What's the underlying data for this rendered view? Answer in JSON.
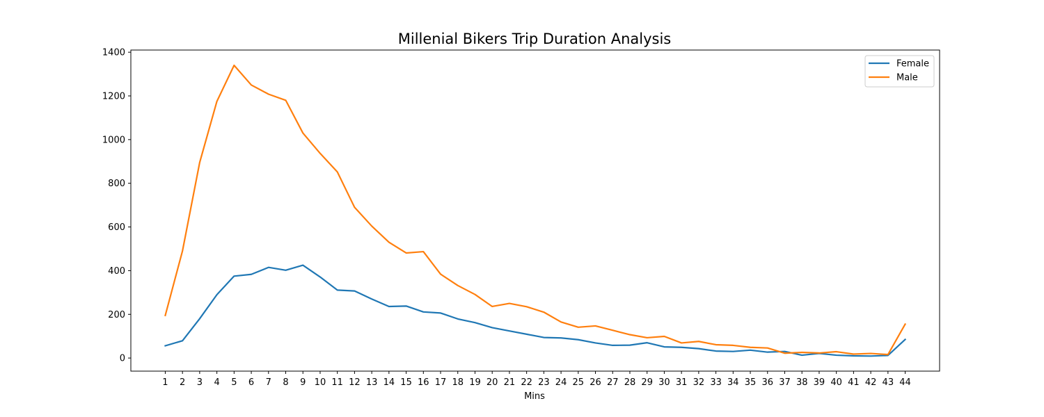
{
  "chart_data": {
    "type": "line",
    "title": "Millenial Bikers Trip Duration Analysis",
    "xlabel": "Mins",
    "ylabel": "",
    "x": [
      1,
      2,
      3,
      4,
      5,
      6,
      7,
      8,
      9,
      10,
      11,
      12,
      13,
      14,
      15,
      16,
      17,
      18,
      19,
      20,
      21,
      22,
      23,
      24,
      25,
      26,
      27,
      28,
      29,
      30,
      31,
      32,
      33,
      34,
      35,
      36,
      37,
      38,
      39,
      40,
      41,
      42,
      43,
      44
    ],
    "xlim": [
      -1,
      46
    ],
    "ylim": [
      -60,
      1410
    ],
    "yticks": [
      0,
      200,
      400,
      600,
      800,
      1000,
      1200,
      1400
    ],
    "grid": false,
    "legend": {
      "position": "top-right"
    },
    "series": [
      {
        "name": "Female",
        "color": "#1f77b4",
        "values": [
          56,
          79,
          180,
          290,
          375,
          383,
          415,
          402,
          425,
          371,
          311,
          307,
          270,
          236,
          238,
          211,
          206,
          179,
          162,
          139,
          124,
          109,
          94,
          92,
          84,
          69,
          58,
          59,
          70,
          51,
          49,
          43,
          32,
          30,
          36,
          27,
          30,
          13,
          21,
          13,
          10,
          9,
          12,
          85
        ]
      },
      {
        "name": "Male",
        "color": "#ff7f0e",
        "values": [
          195,
          490,
          895,
          1175,
          1340,
          1250,
          1208,
          1180,
          1030,
          937,
          852,
          690,
          604,
          530,
          481,
          487,
          384,
          332,
          291,
          236,
          250,
          235,
          210,
          165,
          141,
          147,
          127,
          107,
          93,
          99,
          69,
          76,
          61,
          58,
          49,
          46,
          22,
          26,
          23,
          29,
          18,
          21,
          16,
          155
        ]
      }
    ]
  }
}
